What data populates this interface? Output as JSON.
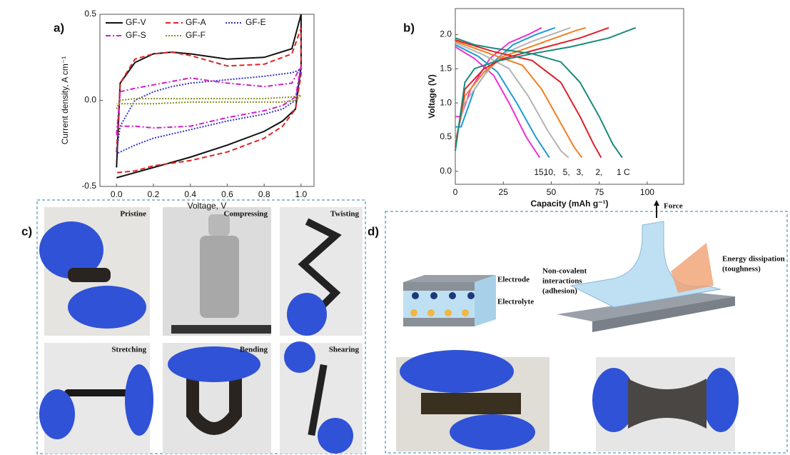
{
  "panels": {
    "a": "a)",
    "b": "b)",
    "c": "c)",
    "d": "d)"
  },
  "chart_data": [
    {
      "type": "line",
      "xlabel": "Voltage, V",
      "ylabel": "Current density, A cm⁻¹",
      "xlim": [
        -0.09,
        1.07
      ],
      "ylim": [
        -0.5,
        0.5
      ],
      "xticks": [
        {
          "value": 0,
          "label": "0.0"
        },
        {
          "value": 0.2,
          "label": "0.2"
        },
        {
          "value": 0.4,
          "label": "0.4"
        },
        {
          "value": 0.6,
          "label": "0.6"
        },
        {
          "value": 0.8,
          "label": "0.8"
        },
        {
          "value": 1,
          "label": "1.0"
        }
      ],
      "yticks": [
        {
          "value": -0.5,
          "label": "-0.5"
        },
        {
          "value": 0,
          "label": "0.0"
        },
        {
          "value": 0.5,
          "label": "0.5"
        }
      ],
      "legend": "upper-left",
      "series": [
        {
          "name": "GF-V",
          "color": "#111111",
          "line_style": "solid",
          "x": [
            0,
            0.02,
            0.1,
            0.2,
            0.3,
            0.4,
            0.6,
            0.8,
            0.95,
            1,
            1,
            0.97,
            0.9,
            0.8,
            0.6,
            0.4,
            0.2,
            0.1,
            0
          ],
          "values": [
            -0.39,
            0.1,
            0.22,
            0.27,
            0.28,
            0.27,
            0.24,
            0.25,
            0.3,
            0.5,
            0.2,
            -0.05,
            -0.12,
            -0.18,
            -0.26,
            -0.33,
            -0.39,
            -0.42,
            -0.45
          ]
        },
        {
          "name": "GF-A",
          "color": "#e02424",
          "line_style": "dashed",
          "x": [
            0,
            0.02,
            0.1,
            0.2,
            0.3,
            0.4,
            0.6,
            0.8,
            0.95,
            1,
            1,
            0.97,
            0.9,
            0.8,
            0.6,
            0.4,
            0.2,
            0.1,
            0
          ],
          "values": [
            -0.3,
            0.1,
            0.24,
            0.27,
            0.28,
            0.26,
            0.2,
            0.21,
            0.27,
            0.42,
            0.15,
            -0.05,
            -0.15,
            -0.22,
            -0.3,
            -0.35,
            -0.38,
            -0.41,
            -0.42
          ]
        },
        {
          "name": "GF-E",
          "color": "#3434c8",
          "line_style": "dotted",
          "x": [
            0,
            0.02,
            0.1,
            0.2,
            0.3,
            0.4,
            0.6,
            0.8,
            0.95,
            1,
            1,
            0.97,
            0.9,
            0.8,
            0.6,
            0.4,
            0.2,
            0.1,
            0
          ],
          "values": [
            -0.3,
            -0.15,
            0,
            0.05,
            0.08,
            0.1,
            0.12,
            0.14,
            0.16,
            0.18,
            0.18,
            0,
            -0.05,
            -0.08,
            -0.12,
            -0.17,
            -0.22,
            -0.26,
            -0.31
          ]
        },
        {
          "name": "GF-S",
          "color": "#d020c8",
          "line_style": "dashdot",
          "x": [
            0,
            0.02,
            0.1,
            0.2,
            0.3,
            0.4,
            0.6,
            0.8,
            0.95,
            1,
            1,
            0.97,
            0.9,
            0.8,
            0.6,
            0.4,
            0.2,
            0.1,
            0
          ],
          "values": [
            -0.2,
            0.05,
            0.07,
            0.09,
            0.11,
            0.13,
            0.1,
            0.08,
            0.1,
            0.2,
            0.2,
            0.02,
            -0.03,
            -0.06,
            -0.1,
            -0.15,
            -0.16,
            -0.15,
            -0.15
          ]
        },
        {
          "name": "GF-F",
          "color": "#8a8a20",
          "line_style": "dotted",
          "x": [
            0,
            0.02,
            0.1,
            0.2,
            0.3,
            0.4,
            0.6,
            0.8,
            0.95,
            1,
            1,
            0.97,
            0.9,
            0.8,
            0.6,
            0.4,
            0.2,
            0.1,
            0
          ],
          "values": [
            -0.05,
            0,
            0.01,
            0.01,
            0.01,
            0.01,
            0.01,
            0.01,
            0.02,
            0.03,
            0.03,
            0,
            -0.01,
            -0.01,
            -0.01,
            -0.01,
            -0.02,
            -0.02,
            -0.02
          ]
        }
      ]
    },
    {
      "type": "line",
      "xlabel": "Capacity (mAh g⁻¹)",
      "ylabel": "Voltage (V)",
      "xlim": [
        0,
        119
      ],
      "ylim": [
        -0.19,
        2.38
      ],
      "xticks": [
        0,
        25,
        50,
        75,
        100
      ],
      "yticks": [
        {
          "value": 0,
          "label": "0.0"
        },
        {
          "value": 0.5,
          "label": "0.5"
        },
        {
          "value": 1,
          "label": "1.0"
        },
        {
          "value": 1.5,
          "label": "1.5"
        },
        {
          "value": 2,
          "label": "2.0"
        }
      ],
      "series": [
        {
          "name": "15,",
          "color": "#f030d0",
          "line_style": "solid",
          "x": [
            0,
            3,
            8,
            18,
            28,
            38,
            45,
            null,
            0,
            10,
            20,
            28,
            37,
            44
          ],
          "values": [
            0.8,
            0.8,
            1.2,
            1.65,
            1.88,
            2,
            2.1,
            null,
            1.82,
            1.65,
            1.4,
            1,
            0.5,
            0.2
          ]
        },
        {
          "name": "10,",
          "color": "#1e9ad6",
          "line_style": "solid",
          "x": [
            0,
            3,
            10,
            20,
            30,
            42,
            52,
            null,
            0,
            12,
            22,
            32,
            42,
            49
          ],
          "values": [
            0.65,
            0.65,
            1.2,
            1.6,
            1.85,
            2,
            2.1,
            null,
            1.85,
            1.68,
            1.45,
            1,
            0.5,
            0.2
          ]
        },
        {
          "name": "5,",
          "color": "#b4b4b4",
          "line_style": "solid",
          "x": [
            0,
            5,
            15,
            25,
            40,
            55,
            60,
            null,
            0,
            15,
            28,
            38,
            48,
            55,
            59
          ],
          "values": [
            0.45,
            1,
            1.4,
            1.72,
            1.9,
            2.05,
            2.1,
            null,
            1.88,
            1.7,
            1.5,
            1.1,
            0.6,
            0.3,
            0.2
          ]
        },
        {
          "name": "3,",
          "color": "#f08020",
          "line_style": "solid",
          "x": [
            0,
            5,
            15,
            25,
            45,
            62,
            68,
            null,
            0,
            20,
            35,
            45,
            55,
            62,
            66
          ],
          "values": [
            0.4,
            1.1,
            1.45,
            1.68,
            1.88,
            2.05,
            2.1,
            null,
            1.9,
            1.7,
            1.55,
            1.2,
            0.7,
            0.35,
            0.2
          ]
        },
        {
          "name": "2,",
          "color": "#e0202a",
          "line_style": "solid",
          "x": [
            0,
            5,
            15,
            25,
            45,
            65,
            80,
            null,
            0,
            20,
            40,
            55,
            65,
            72,
            76
          ],
          "values": [
            0.35,
            1.2,
            1.5,
            1.65,
            1.8,
            1.95,
            2.1,
            null,
            1.92,
            1.75,
            1.62,
            1.3,
            0.8,
            0.4,
            0.2
          ]
        },
        {
          "name": "1 C",
          "color": "#1a8a7a",
          "line_style": "solid",
          "x": [
            0,
            5,
            10,
            20,
            40,
            60,
            80,
            94,
            null,
            0,
            10,
            20,
            40,
            55,
            65,
            75,
            82,
            87
          ],
          "values": [
            0.3,
            1.3,
            1.5,
            1.6,
            1.72,
            1.82,
            1.95,
            2.1,
            null,
            1.95,
            1.85,
            1.8,
            1.72,
            1.6,
            1.3,
            0.8,
            0.4,
            0.2
          ]
        }
      ]
    }
  ],
  "photos": [
    "Pristine",
    "Compressing",
    "Twisting",
    "Stretching",
    "Bending",
    "Shearing"
  ],
  "diagram": {
    "electrode": "Electrode",
    "electrolyte": "Electrolyte",
    "force": "Force",
    "dissipation": [
      "Energy dissipation",
      "(toughness)"
    ],
    "adhesion": [
      "Non-covalent",
      "interactions",
      "(adhesion)"
    ]
  }
}
